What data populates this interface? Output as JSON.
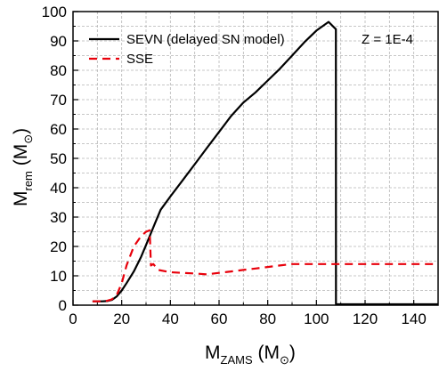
{
  "chart_data": {
    "type": "line",
    "xlim": [
      0,
      150
    ],
    "ylim": [
      0,
      100
    ],
    "xticks": [
      0,
      20,
      40,
      60,
      80,
      100,
      120,
      140
    ],
    "yticks": [
      0,
      10,
      20,
      30,
      40,
      50,
      60,
      70,
      80,
      90,
      100
    ],
    "xtick_labels": [
      "0",
      "20",
      "40",
      "60",
      "80",
      "100",
      "120",
      "140"
    ],
    "ytick_labels": [
      "0",
      "10",
      "20",
      "30",
      "40",
      "50",
      "60",
      "70",
      "80",
      "90",
      "100"
    ],
    "xlabel": {
      "main": "M",
      "sub": "ZAMS",
      "unit_open": " (M",
      "unit_sub": "⊙",
      "unit_close": ")"
    },
    "ylabel": {
      "main": "M",
      "sub": "rem",
      "unit_open": " (M",
      "unit_sub": "⊙",
      "unit_close": ")"
    },
    "annotation": "Z = 1E-4",
    "grid": true,
    "legend_position": "top-left",
    "series": [
      {
        "name": "SEVN (delayed SN model)",
        "color": "#000000",
        "dash": "solid",
        "x": [
          8,
          10,
          12,
          14,
          16,
          18,
          20,
          22,
          25,
          28,
          30,
          32,
          34,
          36,
          40,
          45,
          50,
          55,
          60,
          65,
          70,
          75,
          80,
          85,
          90,
          95,
          100,
          105,
          108,
          108.05,
          120,
          150
        ],
        "y": [
          1.3,
          1.3,
          1.3,
          1.4,
          1.8,
          3.0,
          5.0,
          7.5,
          11.5,
          16.5,
          20.5,
          24.5,
          28.5,
          32.5,
          37,
          42.5,
          48,
          53.5,
          59,
          64.5,
          69,
          72.5,
          76.5,
          80.5,
          85,
          89.5,
          93.5,
          96.5,
          94,
          0.3,
          0.3,
          0.3
        ]
      },
      {
        "name": "SSE",
        "color": "#e8000b",
        "dash": "dashed",
        "x": [
          8,
          10,
          12,
          14,
          16,
          18,
          20,
          22,
          25,
          28,
          30,
          31.5,
          32,
          33,
          35,
          40,
          45,
          50,
          55,
          60,
          65,
          70,
          75,
          80,
          85,
          90,
          95,
          100,
          105,
          108,
          120,
          150
        ],
        "y": [
          1.3,
          1.3,
          1.3,
          1.5,
          2.0,
          3.5,
          7.5,
          13.5,
          20,
          23.5,
          25,
          25.5,
          13.5,
          14,
          12.0,
          11.2,
          11.0,
          10.8,
          10.5,
          11.0,
          11.5,
          12.0,
          12.5,
          13.0,
          13.5,
          14.0,
          14.0,
          14.0,
          14.0,
          14.0,
          14.0,
          14.0
        ]
      }
    ]
  }
}
